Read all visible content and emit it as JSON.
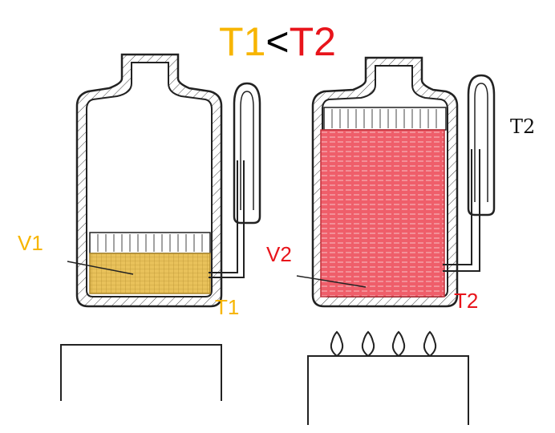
{
  "title": {
    "t1": "T1",
    "op": "<",
    "t2": "T2"
  },
  "left": {
    "volume_label": "V1",
    "temp_label": "T1"
  },
  "right": {
    "volume_label": "V2",
    "temp_label": "T2",
    "thermometer_label": "T2"
  },
  "colors": {
    "cold": "#f7b500",
    "hot": "#e8141b",
    "cold_fill": "#e8c15a",
    "hot_fill": "#ef5e6a"
  }
}
